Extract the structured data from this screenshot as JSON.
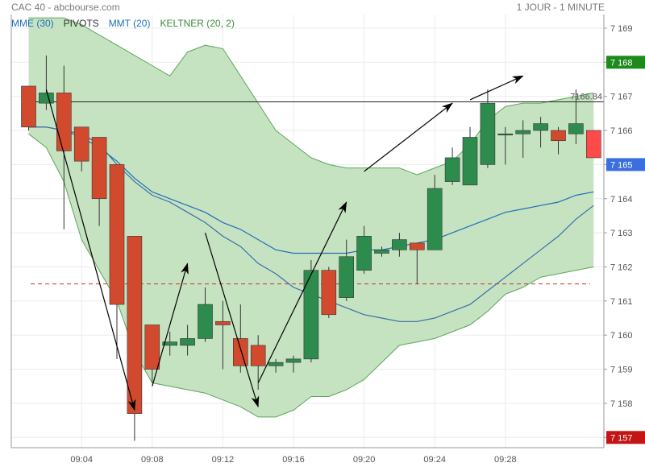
{
  "header": {
    "title": "CAC 40 - abcbourse.com",
    "interval": "1 JOUR - 1 MINUTE"
  },
  "legend": [
    {
      "label": "MME (30)",
      "color": "#1f6fb8"
    },
    {
      "label": "PIVOTS",
      "color": "#333333"
    },
    {
      "label": "MMT (20)",
      "color": "#1f6fb8"
    },
    {
      "label": "KELTNER (20, 2)",
      "color": "#3a8a3a"
    }
  ],
  "colors": {
    "up": "#2e8b4e",
    "down": "#d24a2e",
    "last_down": "#ff4a4a",
    "band_fill": "#c6e3c1",
    "band_stroke": "#5aa65a",
    "ema": "#1f6fb8",
    "sma": "#3a6ea8",
    "pivot_dash": "#d03030",
    "tag_green": "#1c8a1c",
    "tag_blue": "#3b6fe0",
    "tag_red": "#c41414",
    "grid": "#ebebeb"
  },
  "chart_data": {
    "type": "candlestick",
    "ylim": [
      7156.7,
      7169.4
    ],
    "y_ticks": [
      7157,
      7158,
      7159,
      7160,
      7161,
      7162,
      7163,
      7164,
      7165,
      7166,
      7167,
      7168,
      7169
    ],
    "x_ticks": [
      "09:04",
      "09:08",
      "09:12",
      "09:16",
      "09:20",
      "09:24",
      "09:28"
    ],
    "start_time": "09:00",
    "candles": [
      {
        "t": "09:01",
        "o": 7167.3,
        "h": 7167.3,
        "l": 7166.0,
        "c": 7166.1
      },
      {
        "t": "09:02",
        "o": 7166.8,
        "h": 7168.2,
        "l": 7166.6,
        "c": 7167.1
      },
      {
        "t": "09:03",
        "o": 7167.1,
        "h": 7167.9,
        "l": 7163.1,
        "c": 7165.4
      },
      {
        "t": "09:04",
        "o": 7166.1,
        "h": 7166.1,
        "l": 7164.8,
        "c": 7165.1
      },
      {
        "t": "09:05",
        "o": 7165.8,
        "h": 7165.8,
        "l": 7163.2,
        "c": 7164.0
      },
      {
        "t": "09:06",
        "o": 7165.0,
        "h": 7165.0,
        "l": 7159.3,
        "c": 7160.9
      },
      {
        "t": "09:07",
        "o": 7162.9,
        "h": 7162.9,
        "l": 7156.9,
        "c": 7157.7
      },
      {
        "t": "09:08",
        "o": 7160.3,
        "h": 7160.3,
        "l": 7158.6,
        "c": 7159.0
      },
      {
        "t": "09:09",
        "o": 7159.7,
        "h": 7160.1,
        "l": 7159.4,
        "c": 7159.8
      },
      {
        "t": "09:10",
        "o": 7159.7,
        "h": 7160.3,
        "l": 7159.4,
        "c": 7159.9
      },
      {
        "t": "09:11",
        "o": 7159.9,
        "h": 7161.4,
        "l": 7159.8,
        "c": 7160.9
      },
      {
        "t": "09:12",
        "o": 7160.4,
        "h": 7161.0,
        "l": 7159.0,
        "c": 7160.3
      },
      {
        "t": "09:13",
        "o": 7159.9,
        "h": 7160.9,
        "l": 7158.9,
        "c": 7159.1
      },
      {
        "t": "09:14",
        "o": 7159.7,
        "h": 7160.0,
        "l": 7158.4,
        "c": 7159.1
      },
      {
        "t": "09:15",
        "o": 7159.1,
        "h": 7159.3,
        "l": 7158.9,
        "c": 7159.2
      },
      {
        "t": "09:16",
        "o": 7159.2,
        "h": 7159.4,
        "l": 7158.9,
        "c": 7159.3
      },
      {
        "t": "09:17",
        "o": 7159.3,
        "h": 7162.2,
        "l": 7159.2,
        "c": 7161.9
      },
      {
        "t": "09:18",
        "o": 7161.9,
        "h": 7162.0,
        "l": 7160.5,
        "c": 7160.6
      },
      {
        "t": "09:19",
        "o": 7161.1,
        "h": 7162.8,
        "l": 7161.0,
        "c": 7162.3
      },
      {
        "t": "09:20",
        "o": 7161.9,
        "h": 7163.2,
        "l": 7161.8,
        "c": 7162.9
      },
      {
        "t": "09:21",
        "o": 7162.4,
        "h": 7162.6,
        "l": 7162.3,
        "c": 7162.5
      },
      {
        "t": "09:22",
        "o": 7162.5,
        "h": 7163.0,
        "l": 7162.3,
        "c": 7162.8
      },
      {
        "t": "09:23",
        "o": 7162.7,
        "h": 7162.7,
        "l": 7161.5,
        "c": 7162.5
      },
      {
        "t": "09:24",
        "o": 7162.5,
        "h": 7164.7,
        "l": 7162.5,
        "c": 7164.3
      },
      {
        "t": "09:25",
        "o": 7164.5,
        "h": 7165.5,
        "l": 7164.4,
        "c": 7165.2
      },
      {
        "t": "09:26",
        "o": 7164.4,
        "h": 7166.1,
        "l": 7164.4,
        "c": 7165.8
      },
      {
        "t": "09:27",
        "o": 7165.0,
        "h": 7167.2,
        "l": 7164.9,
        "c": 7166.8
      },
      {
        "t": "09:28",
        "o": 7165.9,
        "h": 7166.1,
        "l": 7165.0,
        "c": 7165.9
      },
      {
        "t": "09:29",
        "o": 7165.9,
        "h": 7166.3,
        "l": 7165.2,
        "c": 7166.0
      },
      {
        "t": "09:30",
        "o": 7166.0,
        "h": 7166.4,
        "l": 7165.5,
        "c": 7166.2
      },
      {
        "t": "09:31",
        "o": 7166.0,
        "h": 7166.1,
        "l": 7165.3,
        "c": 7165.7
      },
      {
        "t": "09:32",
        "o": 7165.9,
        "h": 7167.2,
        "l": 7165.6,
        "c": 7166.2
      },
      {
        "t": "09:33",
        "o": 7166.0,
        "h": 7166.0,
        "l": 7165.2,
        "c": 7165.2
      }
    ],
    "keltner_upper": [
      7169.3,
      7169.3,
      7169.3,
      7169.1,
      7168.8,
      7168.5,
      7168.2,
      7167.9,
      7167.6,
      7168.3,
      7168.5,
      7168.4,
      7167.6,
      7166.8,
      7166.0,
      7165.6,
      7165.2,
      7165.0,
      7164.9,
      7164.9,
      7164.9,
      7164.9,
      7164.7,
      7164.9,
      7165.1,
      7165.6,
      7166.3,
      7166.7,
      7166.8,
      7166.8,
      7166.9,
      7167.0,
      7167.1
    ],
    "keltner_lower": [
      7165.9,
      7165.5,
      7164.5,
      7162.8,
      7161.9,
      7161.0,
      7159.5,
      7158.6,
      7158.5,
      7158.4,
      7158.3,
      7158.1,
      7157.9,
      7157.6,
      7157.6,
      7157.8,
      7158.2,
      7158.2,
      7158.4,
      7158.7,
      7159.2,
      7159.7,
      7159.8,
      7159.9,
      7160.1,
      7160.3,
      7160.7,
      7161.2,
      7161.4,
      7161.7,
      7161.8,
      7161.9,
      7162.0
    ],
    "mme_30": [
      7166.1,
      7166.1,
      7166.0,
      7165.8,
      7165.5,
      7165.1,
      7164.6,
      7164.2,
      7164.0,
      7163.8,
      7163.6,
      7163.3,
      7163.1,
      7162.8,
      7162.5,
      7162.4,
      7162.4,
      7162.4,
      7162.4,
      7162.5,
      7162.5,
      7162.6,
      7162.7,
      7162.8,
      7163.0,
      7163.2,
      7163.4,
      7163.6,
      7163.7,
      7163.8,
      7163.9,
      7164.1,
      7164.2
    ],
    "mmt_20": [
      7166.1,
      7166.1,
      7166.0,
      7165.9,
      7165.6,
      7165.0,
      7164.5,
      7164.1,
      7163.9,
      7163.6,
      7163.3,
      7162.9,
      7162.6,
      7162.1,
      7161.8,
      7161.4,
      7161.2,
      7161.0,
      7160.8,
      7160.6,
      7160.5,
      7160.4,
      7160.4,
      7160.5,
      7160.7,
      7160.9,
      7161.3,
      7161.7,
      7162.1,
      7162.5,
      7162.9,
      7163.4,
      7163.8
    ],
    "pivot_level": 7161.5,
    "reference_line": {
      "value": 7166.84,
      "label": "7166.84"
    },
    "price_tags": [
      {
        "label": "7 168",
        "value": 7168.0,
        "color": "#1c8a1c"
      },
      {
        "label": "7 165",
        "value": 7165.0,
        "color": "#3b6fe0"
      },
      {
        "label": "7 157",
        "value": 7157.0,
        "color": "#c41414"
      }
    ],
    "arrows": [
      {
        "from": {
          "t": "09:02",
          "v": 7167.2
        },
        "to": {
          "t": "09:07",
          "v": 7157.8
        }
      },
      {
        "from": {
          "t": "09:08",
          "v": 7158.5
        },
        "to": {
          "t": "09:10",
          "v": 7162.1
        }
      },
      {
        "from": {
          "t": "09:11",
          "v": 7163.0
        },
        "to": {
          "t": "09:14",
          "v": 7157.9
        }
      },
      {
        "from": {
          "t": "09:14",
          "v": 7158.6
        },
        "to": {
          "t": "09:19",
          "v": 7163.9
        }
      },
      {
        "from": {
          "t": "09:20",
          "v": 7164.8
        },
        "to": {
          "t": "09:25",
          "v": 7166.8
        }
      },
      {
        "from": {
          "t": "09:26",
          "v": 7166.9
        },
        "to": {
          "t": "09:29",
          "v": 7167.6
        }
      }
    ]
  }
}
